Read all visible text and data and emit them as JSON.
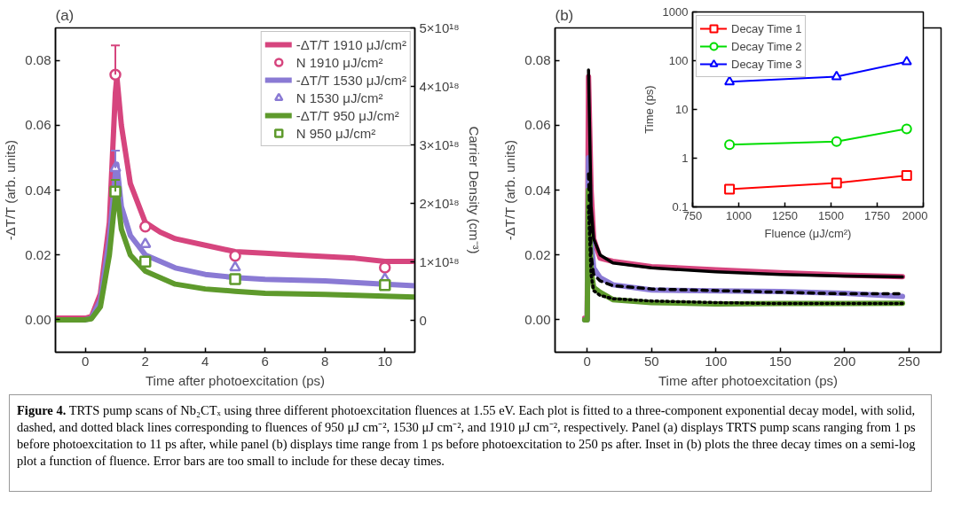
{
  "chart_data": [
    {
      "type": "line",
      "title": "(a)",
      "xlabel": "Time after photoexcitation (ps)",
      "ylabel": "-ΔT/T (arb. units)",
      "y2label": "Carrier Density (cm⁻³)",
      "xlim": [
        -1,
        11
      ],
      "xticks": [
        0,
        2,
        4,
        6,
        8,
        10
      ],
      "ylim": [
        -0.01,
        0.09
      ],
      "yticks": [
        {
          "value": 0,
          "label": "0.00"
        },
        {
          "value": 0.02,
          "label": "0.02"
        },
        {
          "value": 0.04,
          "label": "0.04"
        },
        {
          "value": 0.06,
          "label": "0.06"
        },
        {
          "value": 0.08,
          "label": "0.08"
        }
      ],
      "y2lim": [
        -5.5e+17,
        5e+18
      ],
      "y2ticks": [
        0,
        {
          "value": 1e+18,
          "label": "1×10¹⁸"
        },
        {
          "value": 2e+18,
          "label": "2×10¹⁸"
        },
        {
          "value": 3e+18,
          "label": "3×10¹⁸"
        },
        {
          "value": 4e+18,
          "label": "4×10¹⁸"
        },
        {
          "value": 5e+18,
          "label": "5×10¹⁸"
        }
      ],
      "legend": "top right",
      "series": [
        {
          "name": "-ΔT/T 1910 μJ/cm²",
          "color": "#d6457e",
          "x": [
            -1,
            0,
            0.2,
            0.5,
            0.8,
            1.0,
            1.05,
            1.2,
            1.5,
            2.0,
            2.5,
            3,
            4,
            5,
            6,
            7,
            8,
            9,
            10,
            11
          ],
          "values": [
            0.0005,
            0.0005,
            0.001,
            0.008,
            0.03,
            0.07,
            0.075,
            0.06,
            0.042,
            0.03,
            0.027,
            0.025,
            0.023,
            0.021,
            0.0205,
            0.02,
            0.0195,
            0.019,
            0.018,
            0.018
          ]
        },
        {
          "type": "scatter",
          "axis": "y2",
          "marker": "circle",
          "name": "N 1910 μJ/cm²",
          "color": "#d6457e",
          "x": [
            1,
            2,
            5,
            10
          ],
          "values": [
            4.2e+18,
            1.6e+18,
            1.1e+18,
            9e+17
          ],
          "errors": [
            [
              4.2e+18,
              4.7e+18
            ],
            null,
            null,
            null
          ]
        },
        {
          "name": "-ΔT/T 1530 μJ/cm²",
          "color": "#8a7ad4",
          "x": [
            -1,
            0,
            0.2,
            0.5,
            0.8,
            1.0,
            1.05,
            1.2,
            1.5,
            2,
            3,
            4,
            5,
            6,
            8,
            10,
            11
          ],
          "values": [
            0,
            0,
            0.0005,
            0.006,
            0.025,
            0.045,
            0.048,
            0.035,
            0.026,
            0.02,
            0.016,
            0.014,
            0.013,
            0.0125,
            0.012,
            0.011,
            0.0105
          ]
        },
        {
          "type": "scatter",
          "axis": "y2",
          "marker": "triangle",
          "name": "N 1530 μJ/cm²",
          "color": "#8a7ad4",
          "x": [
            1,
            2,
            5,
            10
          ],
          "values": [
            2.6e+18,
            1.3e+18,
            9e+17,
            7e+17
          ],
          "errors": [
            [
              2.6e+18,
              2.9e+18
            ],
            null,
            null,
            null
          ]
        },
        {
          "name": "-ΔT/T 950 μJ/cm²",
          "color": "#5e9a2c",
          "x": [
            -1,
            0,
            0.2,
            0.5,
            0.8,
            1.0,
            1.05,
            1.2,
            1.5,
            2,
            3,
            4,
            5,
            6,
            8,
            10,
            11
          ],
          "values": [
            0,
            0,
            0.0003,
            0.004,
            0.02,
            0.038,
            0.04,
            0.028,
            0.02,
            0.015,
            0.011,
            0.0095,
            0.0088,
            0.0082,
            0.0078,
            0.0073,
            0.007
          ]
        },
        {
          "type": "scatter",
          "axis": "y2",
          "marker": "square",
          "name": "N 950 μJ/cm²",
          "color": "#5e9a2c",
          "x": [
            1,
            2,
            5,
            10
          ],
          "values": [
            2.2e+18,
            1e+18,
            7e+17,
            6e+17
          ],
          "errors": [
            [
              2.2e+18,
              2.4e+18
            ],
            null,
            null,
            null
          ]
        }
      ],
      "annotations": [
        "Figure 4.",
        "TRTS pump scans of Nb₂CTₓ using three different photoexcitation fluences at 1.55 eV. Each plot is fitted to a three-component exponential decay model, with solid, dashed, and dotted black lines corresponding to fluences of 950 μJ cm⁻², 1530 μJ cm⁻², and 1910 μJ cm⁻², respectively. Panel (a) displays TRTS pump scans ranging from 1 ps before photoexcitation to 11 ps after, while panel (b) displays time range from 1 ps before photoexcitation to 250 ps after. Inset in (b) plots the three decay times on a semi-log plot a function of fluence. Error bars are too small to include for these decay times."
      ]
    },
    {
      "type": "line",
      "title": "(b)",
      "xlabel": "Time after photoexcitation (ps)",
      "ylabel": "-ΔT/T (arb. units)",
      "xlim": [
        -25,
        275
      ],
      "xticks": [
        0,
        50,
        100,
        150,
        200,
        250
      ],
      "ylim": [
        -0.01,
        0.09
      ],
      "yticks": [
        {
          "value": 0,
          "label": "0.00"
        },
        {
          "value": 0.02,
          "label": "0.02"
        },
        {
          "value": 0.04,
          "label": "0.04"
        },
        {
          "value": 0.06,
          "label": "0.06"
        },
        {
          "value": 0.08,
          "label": "0.08"
        }
      ],
      "series": [
        {
          "color": "#d6457e",
          "x": [
            -2,
            0,
            1,
            3,
            5,
            10,
            20,
            50,
            100,
            150,
            200,
            245
          ],
          "values": [
            0.0005,
            0.0005,
            0.075,
            0.04,
            0.025,
            0.019,
            0.018,
            0.0164,
            0.0154,
            0.0145,
            0.0138,
            0.0133
          ]
        },
        {
          "color": "#8a7ad4",
          "x": [
            -2,
            0,
            1,
            3,
            5,
            10,
            20,
            50,
            100,
            150,
            200,
            245
          ],
          "values": [
            0,
            0,
            0.05,
            0.025,
            0.016,
            0.013,
            0.0108,
            0.0092,
            0.0089,
            0.0087,
            0.0082,
            0.0072
          ]
        },
        {
          "color": "#5e9a2c",
          "x": [
            -2,
            0,
            1,
            3,
            5,
            10,
            20,
            50,
            100,
            150,
            200,
            245
          ],
          "values": [
            0,
            0,
            0.04,
            0.015,
            0.01,
            0.0085,
            0.0062,
            0.0053,
            0.0049,
            0.005,
            0.005,
            0.0051
          ]
        },
        {
          "color": "#000000",
          "line_style": "solid",
          "x": [
            1,
            3,
            5,
            10,
            20,
            50,
            100,
            150,
            200,
            245
          ],
          "values": [
            0.077,
            0.035,
            0.025,
            0.02,
            0.0175,
            0.016,
            0.0148,
            0.014,
            0.0135,
            0.0132
          ]
        },
        {
          "color": "#000000",
          "line_style": "dashed",
          "x": [
            1,
            3,
            5,
            10,
            20,
            50,
            100,
            150,
            200,
            245
          ],
          "values": [
            0.045,
            0.02,
            0.014,
            0.012,
            0.0105,
            0.0095,
            0.009,
            0.0085,
            0.008,
            0.008
          ]
        },
        {
          "color": "#000000",
          "line_style": "dotted",
          "x": [
            1,
            3,
            5,
            10,
            20,
            50,
            100,
            150,
            200,
            245
          ],
          "values": [
            0.035,
            0.014,
            0.009,
            0.0075,
            0.0065,
            0.0058,
            0.0053,
            0.005,
            0.005,
            0.005
          ]
        }
      ]
    },
    {
      "type": "line",
      "xlabel": "Fluence (μJ/cm²)",
      "ylabel": "Time (ps)",
      "log": true,
      "xlim": [
        750,
        2000
      ],
      "xticks": [
        750,
        1000,
        1250,
        1500,
        1750,
        2000
      ],
      "ylim": [
        0.1,
        1000
      ],
      "yticks": [
        0.1,
        1,
        10,
        100,
        1000
      ],
      "legend": "top left",
      "x": [
        950,
        1530,
        1910
      ],
      "series": [
        {
          "name": "Decay Time 1",
          "color": "#ff0000",
          "marker": "square",
          "values": [
            0.23,
            0.31,
            0.44
          ]
        },
        {
          "name": "Decay Time 2",
          "color": "#00dd00",
          "marker": "circle",
          "values": [
            1.9,
            2.2,
            4.0
          ]
        },
        {
          "name": "Decay Time 3",
          "color": "#0000ff",
          "marker": "triangle",
          "values": [
            37,
            47,
            95
          ]
        }
      ]
    }
  ]
}
